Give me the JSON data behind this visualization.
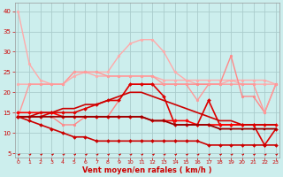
{
  "title": "",
  "xlabel": "Vent moyen/en rafales ( km/h )",
  "background_color": "#cceeed",
  "grid_color": "#aacccc",
  "x": [
    0,
    1,
    2,
    3,
    4,
    5,
    6,
    7,
    8,
    9,
    10,
    11,
    12,
    13,
    14,
    15,
    16,
    17,
    18,
    19,
    20,
    21,
    22,
    23
  ],
  "series": [
    {
      "y": [
        40,
        27,
        23,
        22,
        22,
        25,
        25,
        24,
        24,
        24,
        24,
        24,
        24,
        23,
        23,
        23,
        23,
        23,
        23,
        23,
        23,
        23,
        23,
        22
      ],
      "color": "#ffaaaa",
      "lw": 1.0,
      "marker": "o",
      "ms": 2.0
    },
    {
      "y": [
        22,
        22,
        22,
        22,
        22,
        24,
        25,
        25,
        25,
        29,
        32,
        33,
        33,
        30,
        25,
        23,
        22,
        22,
        22,
        23,
        22,
        22,
        22,
        22
      ],
      "color": "#ffaaaa",
      "lw": 1.0,
      "marker": "o",
      "ms": 2.0
    },
    {
      "y": [
        14,
        14,
        14,
        14,
        12,
        12,
        14,
        14,
        14,
        18,
        22,
        22,
        22,
        22,
        22,
        22,
        22,
        22,
        22,
        29,
        19,
        19,
        15,
        22
      ],
      "color": "#ff8888",
      "lw": 1.0,
      "marker": "o",
      "ms": 2.0
    },
    {
      "y": [
        14,
        22,
        22,
        22,
        22,
        25,
        25,
        25,
        24,
        24,
        24,
        24,
        24,
        22,
        22,
        22,
        18,
        22,
        22,
        22,
        22,
        22,
        15,
        22
      ],
      "color": "#ff9999",
      "lw": 1.0,
      "marker": "o",
      "ms": 2.0
    },
    {
      "y": [
        14,
        14,
        14,
        15,
        15,
        15,
        16,
        17,
        18,
        18,
        22,
        22,
        22,
        19,
        12,
        12,
        12,
        18,
        12,
        12,
        12,
        12,
        7,
        11
      ],
      "color": "#dd0000",
      "lw": 1.2,
      "marker": "D",
      "ms": 2.0
    },
    {
      "y": [
        15,
        15,
        15,
        15,
        14,
        14,
        14,
        14,
        14,
        14,
        14,
        14,
        13,
        13,
        13,
        13,
        12,
        12,
        12,
        12,
        12,
        12,
        12,
        12
      ],
      "color": "#ff0000",
      "lw": 1.2,
      "marker": "D",
      "ms": 2.0
    },
    {
      "y": [
        14,
        14,
        15,
        15,
        16,
        16,
        17,
        17,
        18,
        19,
        20,
        20,
        19,
        18,
        17,
        16,
        15,
        14,
        13,
        13,
        12,
        12,
        12,
        12
      ],
      "color": "#cc0000",
      "lw": 1.2,
      "marker": null,
      "ms": 0
    },
    {
      "y": [
        14,
        14,
        14,
        14,
        14,
        14,
        14,
        14,
        14,
        14,
        14,
        14,
        13,
        13,
        12,
        12,
        12,
        12,
        11,
        11,
        11,
        11,
        11,
        11
      ],
      "color": "#990000",
      "lw": 1.3,
      "marker": "s",
      "ms": 2.0
    },
    {
      "y": [
        14,
        13,
        12,
        11,
        10,
        9,
        9,
        8,
        8,
        8,
        8,
        8,
        8,
        8,
        8,
        8,
        8,
        7,
        7,
        7,
        7,
        7,
        7,
        7
      ],
      "color": "#cc0000",
      "lw": 1.2,
      "marker": "D",
      "ms": 2.0
    }
  ],
  "ylim": [
    4,
    42
  ],
  "yticks": [
    5,
    10,
    15,
    20,
    25,
    30,
    35,
    40
  ],
  "xlim": [
    -0.3,
    23.3
  ],
  "xticks": [
    0,
    1,
    2,
    3,
    4,
    5,
    6,
    7,
    8,
    9,
    10,
    11,
    12,
    13,
    14,
    15,
    16,
    17,
    18,
    19,
    20,
    21,
    22,
    23
  ]
}
